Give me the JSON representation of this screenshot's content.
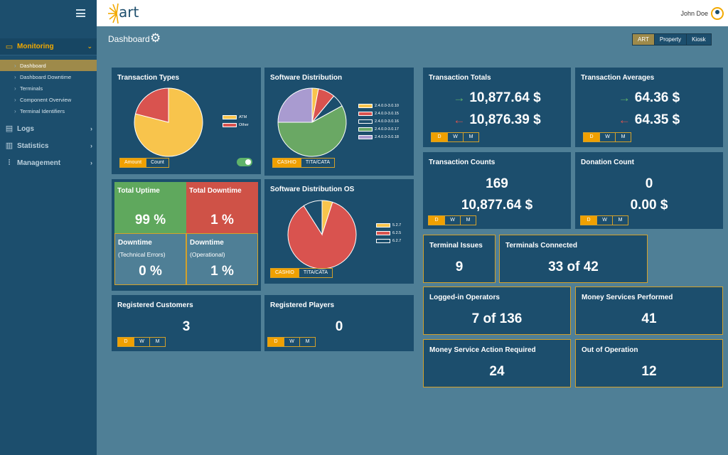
{
  "app": {
    "logo_text": "art",
    "user_name": "John Doe"
  },
  "colors": {
    "accent": "#f0a000",
    "sidebar": "#1c4e6d",
    "background": "#4f7f96",
    "card": "#1c4e6d",
    "green": "#5fb36a",
    "red": "#d9534f",
    "yellow": "#f8c44c",
    "purple": "#a99bd0"
  },
  "sidebar": {
    "sections": [
      {
        "label": "Monitoring",
        "icon": "monitor-icon"
      },
      {
        "label": "Logs",
        "icon": "document-icon"
      },
      {
        "label": "Statistics",
        "icon": "bar-chart-icon"
      },
      {
        "label": "Management",
        "icon": "sliders-icon"
      }
    ],
    "monitoring_items": [
      "Dashboard",
      "Dashboard Downtime",
      "Terminals",
      "Component Overview",
      "Terminal Identifiers"
    ]
  },
  "header": {
    "title": "Dashboard",
    "modes": [
      "ART",
      "Property",
      "Kiosk"
    ]
  },
  "segments": {
    "period": [
      "D",
      "W",
      "M"
    ],
    "amount_count": [
      "Amount",
      "Count"
    ],
    "casino_tita": [
      "CASHIO",
      "TITA/CATA"
    ]
  },
  "transaction_types": {
    "title": "Transaction Types",
    "legend": [
      "ATM",
      "Other"
    ],
    "chart_data": {
      "type": "pie",
      "categories": [
        "ATM",
        "Other"
      ],
      "values": [
        79,
        21
      ]
    }
  },
  "software_distribution": {
    "title": "Software Distribution",
    "legend": [
      "2.4.0.0-3.0.10",
      "2.4.0.0-3.0.15",
      "2.4.0.0-3.0.16",
      "2.4.0.0-3.0.17",
      "2.4.0.0-3.0.18"
    ],
    "chart_data": {
      "type": "pie",
      "categories": [
        "2.4.0.0-3.0.10",
        "2.4.0.0-3.0.15",
        "2.4.0.0-3.0.16",
        "2.4.0.0-3.0.17",
        "2.4.0.0-3.0.18"
      ],
      "values": [
        3,
        8,
        6,
        58,
        25
      ]
    }
  },
  "software_distribution_os": {
    "title": "Software Distribution OS",
    "legend": [
      "5.2.7",
      "6.2.5",
      "6.2.7"
    ],
    "chart_data": {
      "type": "pie",
      "categories": [
        "5.2.7",
        "6.2.5",
        "6.2.7"
      ],
      "values": [
        5,
        86,
        9
      ]
    }
  },
  "uptime": {
    "total_uptime_label": "Total Uptime",
    "total_uptime": "99 %",
    "total_downtime_label": "Total Downtime",
    "total_downtime": "1 %",
    "downtime_technical_label": "Downtime",
    "downtime_technical_sub": "(Technical Errors)",
    "downtime_technical": "0 %",
    "downtime_operational_label": "Downtime",
    "downtime_operational_sub": "(Operational)",
    "downtime_operational": "1 %"
  },
  "registered_customers": {
    "title": "Registered Customers",
    "value": "3"
  },
  "registered_players": {
    "title": "Registered Players",
    "value": "0"
  },
  "transaction_totals": {
    "title": "Transaction Totals",
    "in": "10,877.64 $",
    "out": "10,876.39 $"
  },
  "transaction_averages": {
    "title": "Transaction Averages",
    "in": "64.36 $",
    "out": "64.35 $"
  },
  "transaction_counts": {
    "title": "Transaction Counts",
    "count": "169",
    "amount": "10,877.64 $"
  },
  "donation_count": {
    "title": "Donation Count",
    "count": "0",
    "amount": "0.00 $"
  },
  "terminal_issues": {
    "title": "Terminal Issues",
    "value": "9"
  },
  "terminals_connected": {
    "title": "Terminals Connected",
    "value": "33 of 42"
  },
  "logged_in_operators": {
    "title": "Logged-in Operators",
    "value": "7 of 136"
  },
  "money_services_performed": {
    "title": "Money Services Performed",
    "value": "41"
  },
  "money_service_action_required": {
    "title": "Money Service Action Required",
    "value": "24"
  },
  "out_of_operation": {
    "title": "Out of Operation",
    "value": "12"
  }
}
